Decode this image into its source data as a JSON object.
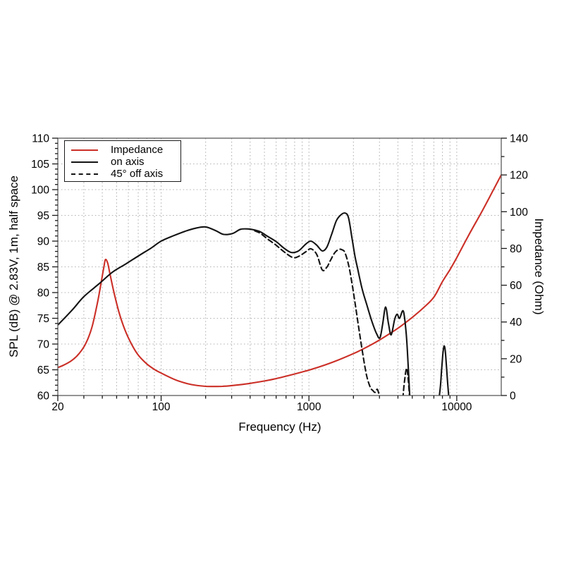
{
  "chart_data": {
    "type": "line",
    "title": "",
    "x_axis": {
      "label": "Frequency (Hz)",
      "scale": "log",
      "min": 20,
      "max": 20000,
      "major_ticks": [
        20,
        100,
        1000,
        10000
      ],
      "tick_labels": [
        "20",
        "100",
        "1000",
        "10000"
      ]
    },
    "y_left": {
      "label": "SPL (dB) @ 2.83V, 1m, half space",
      "min": 60,
      "max": 110,
      "major_step": 5,
      "minor_step": 1,
      "grid_step": 5
    },
    "y_right": {
      "label": "Impedance (Ohm)",
      "min": 0,
      "max": 140,
      "major_step": 20,
      "minor_step": 10
    },
    "grid": "dotted",
    "legend": {
      "position": "top-left",
      "entries": [
        "Impedance",
        "on axis",
        "45° off axis"
      ]
    },
    "colors": {
      "impedance": "#cb2f27",
      "spl": "#141414",
      "grid": "#b4b4b4",
      "frame": "#5a5a5a",
      "tick": "#1a1a1a"
    },
    "series": [
      {
        "name": "Impedance",
        "axis": "right",
        "style": "solid",
        "color": "#cb2f27",
        "points": [
          [
            20,
            15.2
          ],
          [
            22,
            16.6
          ],
          [
            25,
            19.2
          ],
          [
            28,
            23.0
          ],
          [
            31,
            28.5
          ],
          [
            34,
            37.0
          ],
          [
            37,
            50.0
          ],
          [
            39,
            60.0
          ],
          [
            41,
            70.0
          ],
          [
            42,
            74.0
          ],
          [
            43.5,
            72.0
          ],
          [
            45,
            66.5
          ],
          [
            48,
            56.0
          ],
          [
            52,
            45.0
          ],
          [
            57,
            35.5
          ],
          [
            63,
            28.0
          ],
          [
            70,
            22.0
          ],
          [
            80,
            17.2
          ],
          [
            90,
            14.2
          ],
          [
            100,
            12.2
          ],
          [
            115,
            9.8
          ],
          [
            130,
            8.0
          ],
          [
            150,
            6.5
          ],
          [
            170,
            5.6
          ],
          [
            200,
            5.0
          ],
          [
            230,
            4.9
          ],
          [
            260,
            5.0
          ],
          [
            300,
            5.4
          ],
          [
            350,
            6.0
          ],
          [
            400,
            6.6
          ],
          [
            500,
            7.9
          ],
          [
            600,
            9.2
          ],
          [
            700,
            10.5
          ],
          [
            800,
            11.7
          ],
          [
            900,
            12.8
          ],
          [
            1000,
            13.8
          ],
          [
            1200,
            15.8
          ],
          [
            1500,
            18.6
          ],
          [
            2000,
            22.8
          ],
          [
            2500,
            26.6
          ],
          [
            3000,
            30.2
          ],
          [
            4000,
            36.6
          ],
          [
            5000,
            42.5
          ],
          [
            6000,
            48.0
          ],
          [
            7000,
            53.5
          ],
          [
            8000,
            62.0
          ],
          [
            9000,
            68.5
          ],
          [
            10000,
            75.0
          ],
          [
            12000,
            87.0
          ],
          [
            15000,
            101.0
          ],
          [
            18000,
            113.0
          ],
          [
            20000,
            120.0
          ]
        ]
      },
      {
        "name": "on axis",
        "axis": "left",
        "style": "solid",
        "color": "#141414",
        "points": [
          [
            20,
            73.7
          ],
          [
            25,
            76.6
          ],
          [
            30,
            79.2
          ],
          [
            38,
            81.7
          ],
          [
            47,
            84.0
          ],
          [
            58,
            85.6
          ],
          [
            70,
            87.1
          ],
          [
            85,
            88.6
          ],
          [
            100,
            90.0
          ],
          [
            120,
            91.0
          ],
          [
            145,
            91.9
          ],
          [
            170,
            92.5
          ],
          [
            200,
            92.75
          ],
          [
            235,
            92.0
          ],
          [
            265,
            91.3
          ],
          [
            305,
            91.5
          ],
          [
            345,
            92.3
          ],
          [
            390,
            92.35
          ],
          [
            430,
            92.15
          ],
          [
            470,
            91.8
          ],
          [
            520,
            91.0
          ],
          [
            600,
            89.9
          ],
          [
            680,
            88.6
          ],
          [
            760,
            87.8
          ],
          [
            850,
            88.1
          ],
          [
            950,
            89.4
          ],
          [
            1030,
            90.0
          ],
          [
            1130,
            89.2
          ],
          [
            1230,
            88.1
          ],
          [
            1320,
            88.8
          ],
          [
            1420,
            91.2
          ],
          [
            1530,
            93.9
          ],
          [
            1630,
            95.0
          ],
          [
            1750,
            95.45
          ],
          [
            1850,
            94.6
          ],
          [
            1950,
            90.8
          ],
          [
            2050,
            87.0
          ],
          [
            2130,
            84.8
          ],
          [
            2290,
            80.7
          ],
          [
            2470,
            77.5
          ],
          [
            2680,
            74.2
          ],
          [
            2870,
            72.0
          ],
          [
            3020,
            71.2
          ],
          [
            3150,
            73.8
          ],
          [
            3300,
            77.2
          ],
          [
            3450,
            74.0
          ],
          [
            3600,
            71.8
          ],
          [
            3800,
            74.8
          ],
          [
            3950,
            75.8
          ],
          [
            4100,
            75.0
          ],
          [
            4350,
            76.4
          ],
          [
            4550,
            72.0
          ],
          [
            4700,
            65.5
          ],
          [
            4830,
            59.0
          ],
          [
            4950,
            56.0
          ],
          [
            5500,
            55.0
          ],
          [
            6500,
            55.0
          ],
          [
            7300,
            57.0
          ],
          [
            7700,
            61.0
          ],
          [
            7900,
            65.0
          ],
          [
            8050,
            68.0
          ],
          [
            8200,
            69.6
          ],
          [
            8350,
            68.8
          ],
          [
            8500,
            66.0
          ],
          [
            8700,
            62.0
          ],
          [
            8900,
            58.5
          ],
          [
            9100,
            55.5
          ],
          [
            9400,
            54.0
          ]
        ]
      },
      {
        "name": "45° off axis",
        "axis": "left",
        "style": "dashed",
        "color": "#141414",
        "points": [
          [
            430,
            92.0
          ],
          [
            470,
            91.5
          ],
          [
            520,
            90.5
          ],
          [
            600,
            89.2
          ],
          [
            680,
            87.9
          ],
          [
            780,
            86.8
          ],
          [
            860,
            87.1
          ],
          [
            950,
            87.9
          ],
          [
            1030,
            88.5
          ],
          [
            1130,
            87.4
          ],
          [
            1230,
            84.4
          ],
          [
            1320,
            84.9
          ],
          [
            1400,
            86.3
          ],
          [
            1500,
            87.8
          ],
          [
            1600,
            88.4
          ],
          [
            1680,
            88.3
          ],
          [
            1750,
            87.8
          ],
          [
            1850,
            85.5
          ],
          [
            1950,
            82.0
          ],
          [
            2050,
            78.0
          ],
          [
            2150,
            74.0
          ],
          [
            2300,
            68.5
          ],
          [
            2450,
            64.0
          ],
          [
            2600,
            61.6
          ],
          [
            2700,
            61.0
          ],
          [
            2800,
            60.6
          ],
          [
            2900,
            61.2
          ],
          [
            3000,
            59.8
          ],
          [
            3120,
            57.0
          ],
          [
            3500,
            55.0
          ],
          [
            4000,
            56.0
          ],
          [
            4250,
            58.0
          ],
          [
            4400,
            62.0
          ],
          [
            4520,
            64.7
          ],
          [
            4600,
            65.2
          ],
          [
            4700,
            63.0
          ],
          [
            4800,
            59.5
          ],
          [
            4900,
            56.5
          ],
          [
            5200,
            54.0
          ]
        ]
      }
    ]
  }
}
